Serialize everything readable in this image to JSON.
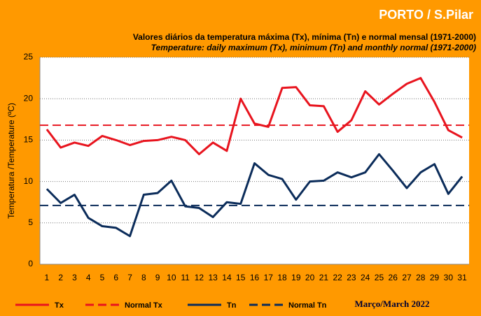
{
  "chart_data": {
    "type": "line",
    "title": "PORTO / S.Pilar",
    "subtitle": "Valores diários da temperatura máxima (Tx), mínima (Tn) e normal mensal  (1971-2000)",
    "subtitle_en": "Temperature: daily maximum  (Tx), minimum (Tn) and  monthly normal  (1971-2000)",
    "y_label": "Temperatura /Temperature (ºC)",
    "annotation": "Março/March 2022",
    "categories": [
      "1",
      "2",
      "3",
      "4",
      "5",
      "6",
      "7",
      "8",
      "9",
      "10",
      "11",
      "12",
      "13",
      "14",
      "15",
      "16",
      "17",
      "18",
      "19",
      "20",
      "21",
      "22",
      "23",
      "24",
      "25",
      "26",
      "27",
      "28",
      "29",
      "30",
      "31"
    ],
    "series": [
      {
        "name": "Tx",
        "color": "#e8141e",
        "values": [
          16.3,
          14.1,
          14.7,
          14.3,
          15.5,
          15.0,
          14.4,
          14.9,
          15.0,
          15.4,
          15.0,
          13.3,
          14.7,
          13.7,
          20.0,
          17.0,
          16.6,
          21.3,
          21.4,
          19.2,
          19.1,
          16.0,
          17.4,
          20.9,
          19.3,
          20.6,
          21.8,
          22.5,
          19.6,
          16.2,
          15.3
        ]
      },
      {
        "name": "Tn",
        "color": "#0b2c5a",
        "values": [
          9.1,
          7.4,
          8.4,
          5.6,
          4.6,
          4.4,
          3.4,
          8.4,
          8.6,
          10.1,
          7.0,
          6.8,
          5.7,
          7.5,
          7.3,
          12.2,
          10.8,
          10.3,
          7.8,
          10.0,
          10.1,
          11.1,
          10.5,
          11.1,
          13.3,
          11.3,
          9.2,
          11.1,
          12.1,
          8.5,
          10.6
        ]
      }
    ],
    "reference_lines": [
      {
        "name": "Normal Tx",
        "color": "#e8141e",
        "value": 16.8
      },
      {
        "name": "Normal Tn",
        "color": "#0b2c5a",
        "value": 7.1
      }
    ],
    "ylim": [
      0,
      25
    ],
    "yticks": [
      0,
      5,
      10,
      15,
      20,
      25
    ],
    "grid": true
  }
}
